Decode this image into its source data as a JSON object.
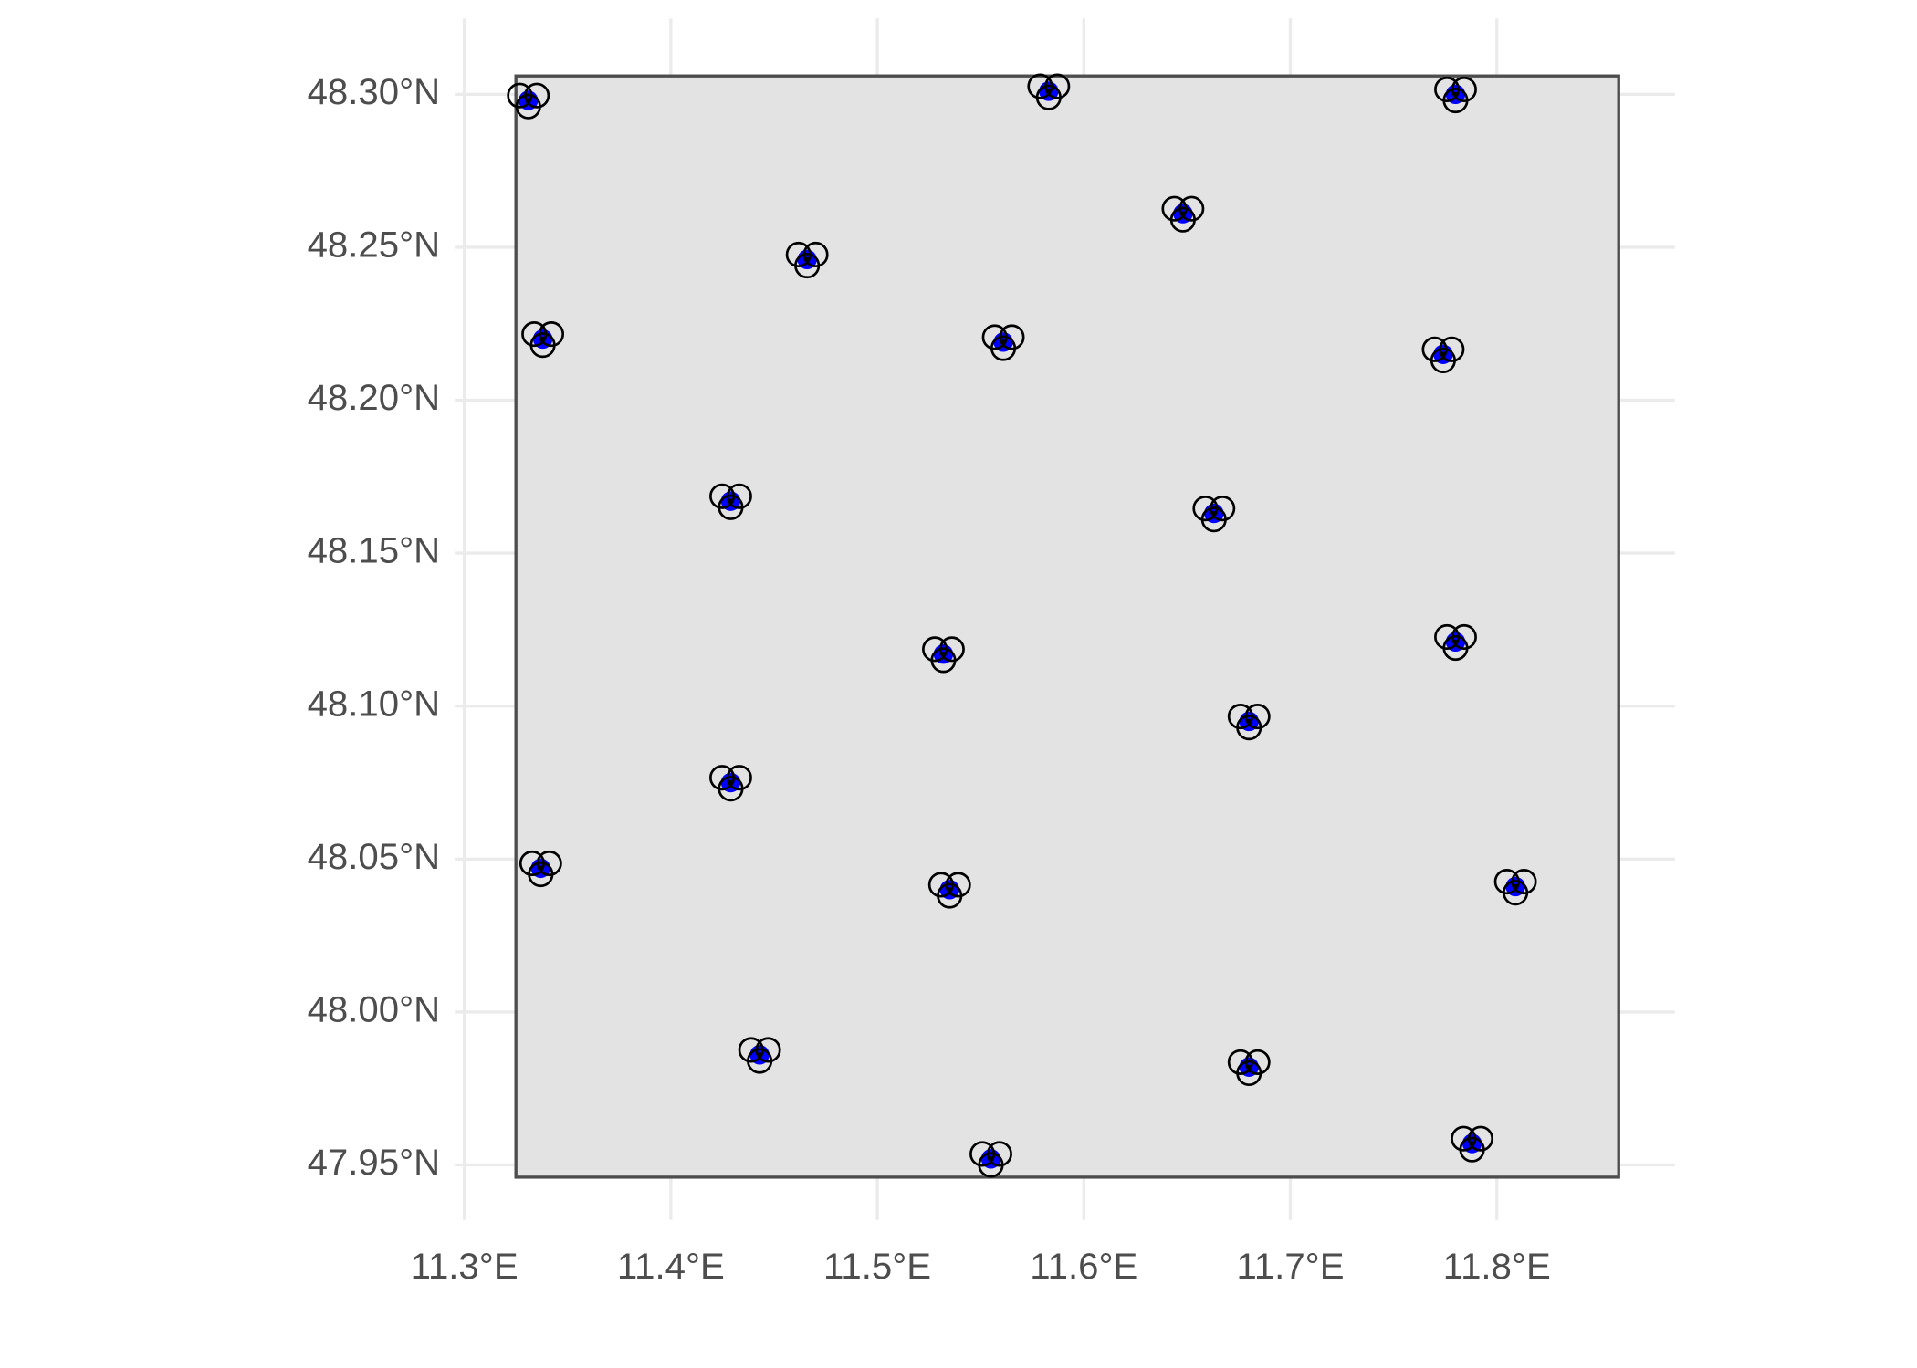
{
  "chart_data": {
    "type": "scatter",
    "x": [
      11.331,
      11.583,
      11.78,
      11.648,
      11.466,
      11.338,
      11.561,
      11.774,
      11.429,
      11.663,
      11.532,
      11.78,
      11.68,
      11.429,
      11.337,
      11.535,
      11.809,
      11.443,
      11.68,
      11.555,
      11.788
    ],
    "values": [
      48.298,
      48.301,
      48.3,
      48.261,
      48.246,
      48.22,
      48.219,
      48.215,
      48.167,
      48.163,
      48.117,
      48.121,
      48.095,
      48.075,
      48.047,
      48.04,
      48.041,
      47.986,
      47.982,
      47.952,
      47.957
    ],
    "color": "#0000ff",
    "xlim": [
      11.325,
      11.859
    ],
    "ylim": [
      47.946,
      48.306
    ],
    "xticks": [
      {
        "value": 11.3,
        "label": "11.3°E"
      },
      {
        "value": 11.4,
        "label": "11.4°E"
      },
      {
        "value": 11.5,
        "label": "11.5°E"
      },
      {
        "value": 11.6,
        "label": "11.6°E"
      },
      {
        "value": 11.7,
        "label": "11.7°E"
      },
      {
        "value": 11.8,
        "label": "11.8°E"
      }
    ],
    "yticks": [
      {
        "value": 47.95,
        "label": "47.95°N"
      },
      {
        "value": 48.0,
        "label": "48.00°N"
      },
      {
        "value": 48.05,
        "label": "48.05°N"
      },
      {
        "value": 48.1,
        "label": "48.10°N"
      },
      {
        "value": 48.15,
        "label": "48.15°N"
      },
      {
        "value": 48.2,
        "label": "48.20°N"
      },
      {
        "value": 48.25,
        "label": "48.25°N"
      },
      {
        "value": 48.3,
        "label": "48.30°N"
      }
    ],
    "grid": true
  }
}
